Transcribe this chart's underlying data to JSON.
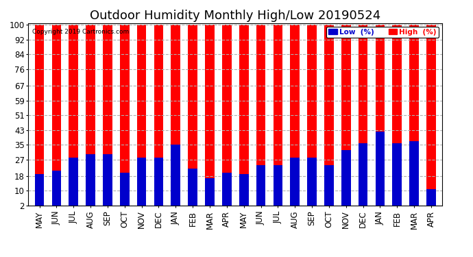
{
  "title": "Outdoor Humidity Monthly High/Low 20190524",
  "copyright": "Copyright 2019 Cartronics.com",
  "months": [
    "MAY",
    "JUN",
    "JUL",
    "AUG",
    "SEP",
    "OCT",
    "NOV",
    "DEC",
    "JAN",
    "FEB",
    "MAR",
    "APR",
    "MAY",
    "JUN",
    "JUL",
    "AUG",
    "SEP",
    "OCT",
    "NOV",
    "DEC",
    "JAN",
    "FEB",
    "MAR",
    "APR"
  ],
  "high_values": [
    100,
    100,
    100,
    100,
    100,
    100,
    100,
    100,
    100,
    100,
    100,
    100,
    100,
    100,
    100,
    100,
    100,
    100,
    100,
    100,
    100,
    100,
    100,
    100
  ],
  "low_values": [
    19,
    21,
    28,
    30,
    30,
    20,
    28,
    28,
    35,
    22,
    17,
    20,
    19,
    24,
    24,
    28,
    28,
    24,
    32,
    36,
    42,
    36,
    37,
    11
  ],
  "yticks": [
    2,
    10,
    18,
    27,
    35,
    43,
    51,
    59,
    67,
    76,
    84,
    92,
    100
  ],
  "ymin": 2,
  "ymax": 101,
  "high_color": "#ff0000",
  "low_color": "#0000cc",
  "bg_color": "#ffffff",
  "grid_color": "#b0b0b0",
  "title_fontsize": 13,
  "tick_fontsize": 8.5,
  "legend_labels": [
    "Low  (%)",
    "High  (%)"
  ],
  "bar_width": 0.55
}
